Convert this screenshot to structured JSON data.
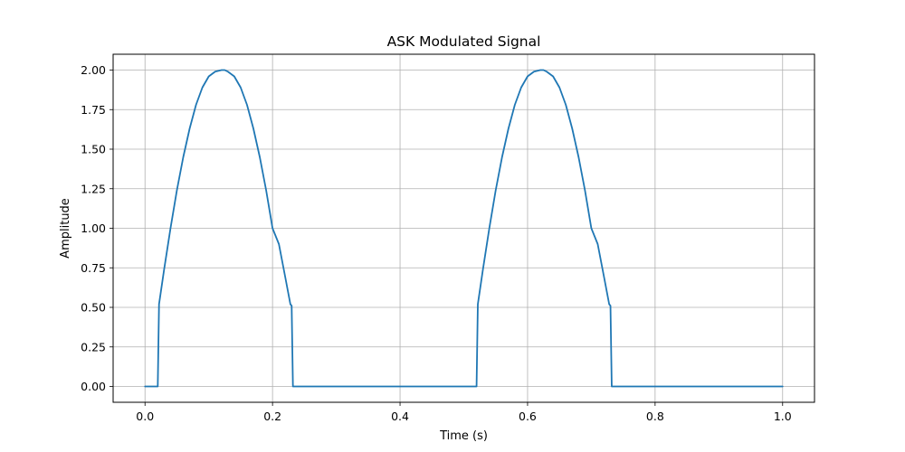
{
  "chart_data": {
    "type": "line",
    "title": "ASK Modulated Signal",
    "xlabel": "Time (s)",
    "ylabel": "Amplitude",
    "xlim": [
      -0.05,
      1.05
    ],
    "ylim": [
      -0.1,
      2.1
    ],
    "xticks": [
      0.0,
      0.2,
      0.4,
      0.6,
      0.8,
      1.0
    ],
    "xtick_labels": [
      "0.0",
      "0.2",
      "0.4",
      "0.6",
      "0.8",
      "1.0"
    ],
    "yticks": [
      0.0,
      0.25,
      0.5,
      0.75,
      1.0,
      1.25,
      1.5,
      1.75,
      2.0
    ],
    "ytick_labels": [
      "0.00",
      "0.25",
      "0.50",
      "0.75",
      "1.00",
      "1.25",
      "1.50",
      "1.75",
      "2.00"
    ],
    "grid": true,
    "series": [
      {
        "color": "#1f77b4",
        "x": [
          0.0,
          0.02,
          0.022,
          0.03,
          0.04,
          0.05,
          0.06,
          0.07,
          0.08,
          0.09,
          0.1,
          0.11,
          0.12,
          0.125,
          0.13,
          0.14,
          0.15,
          0.16,
          0.17,
          0.18,
          0.19,
          0.2,
          0.21,
          0.22,
          0.228,
          0.23,
          0.232,
          0.5,
          0.52,
          0.522,
          0.53,
          0.54,
          0.55,
          0.56,
          0.57,
          0.58,
          0.59,
          0.6,
          0.61,
          0.62,
          0.625,
          0.63,
          0.64,
          0.65,
          0.66,
          0.67,
          0.68,
          0.69,
          0.7,
          0.71,
          0.72,
          0.728,
          0.73,
          0.732,
          1.0
        ],
        "y": [
          0.0,
          0.0,
          0.52,
          0.74,
          1.0,
          1.24,
          1.45,
          1.63,
          1.78,
          1.89,
          1.96,
          1.99,
          2.0,
          2.0,
          1.99,
          1.96,
          1.89,
          1.78,
          1.63,
          1.45,
          1.24,
          1.0,
          0.9,
          0.69,
          0.52,
          0.51,
          0.0,
          0.0,
          0.0,
          0.52,
          0.74,
          1.0,
          1.24,
          1.45,
          1.63,
          1.78,
          1.89,
          1.96,
          1.99,
          2.0,
          2.0,
          1.99,
          1.96,
          1.89,
          1.78,
          1.63,
          1.45,
          1.24,
          1.0,
          0.9,
          0.69,
          0.52,
          0.51,
          0.0,
          0.0
        ]
      }
    ]
  }
}
